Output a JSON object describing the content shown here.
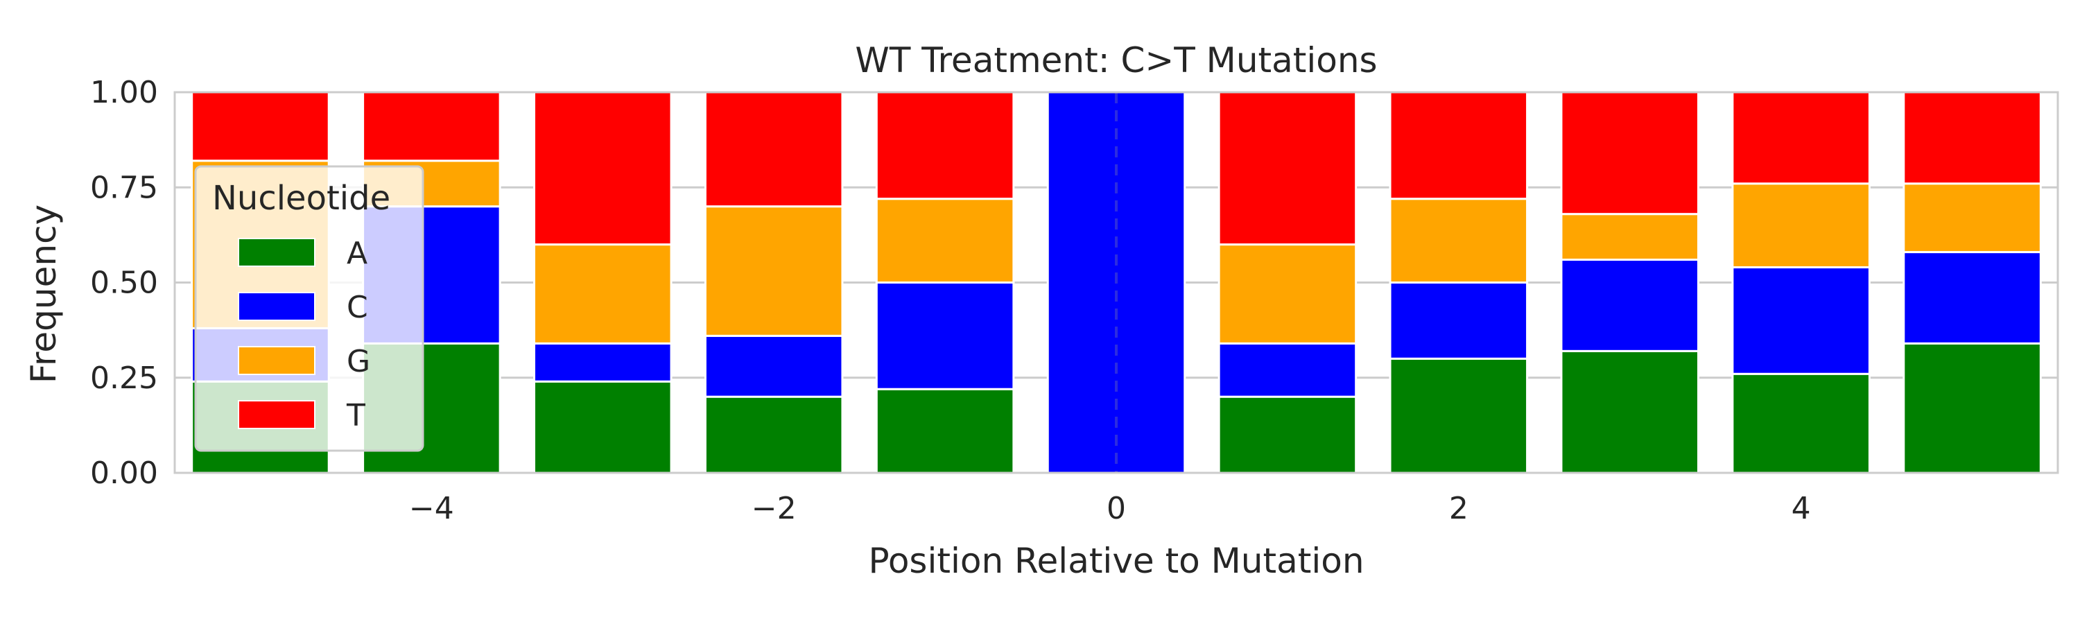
{
  "chart_data": {
    "type": "bar",
    "stacked": true,
    "title": "WT Treatment: C>T Mutations",
    "xlabel": "Position Relative to Mutation",
    "ylabel": "Frequency",
    "x": [
      -5,
      -4,
      -3,
      -2,
      -1,
      0,
      1,
      2,
      3,
      4,
      5
    ],
    "xlim": [
      -5.5,
      5.5
    ],
    "ylim": [
      0,
      1
    ],
    "xticks": [
      -4,
      -2,
      0,
      2,
      4
    ],
    "xtick_labels": [
      "−4",
      "−2",
      "0",
      "2",
      "4"
    ],
    "yticks": [
      0,
      0.25,
      0.5,
      0.75,
      1.0
    ],
    "ytick_labels": [
      "0.00",
      "0.25",
      "0.50",
      "0.75",
      "1.00"
    ],
    "grid": true,
    "reference_line_x": 0,
    "legend": {
      "title": "Nucleotide",
      "position": "upper-left"
    },
    "series": [
      {
        "name": "A",
        "color": "#008000",
        "values": [
          0.24,
          0.34,
          0.24,
          0.2,
          0.22,
          0.0,
          0.2,
          0.3,
          0.32,
          0.26,
          0.34
        ]
      },
      {
        "name": "C",
        "color": "#0000ff",
        "values": [
          0.14,
          0.36,
          0.1,
          0.16,
          0.28,
          1.0,
          0.14,
          0.2,
          0.24,
          0.28,
          0.24
        ]
      },
      {
        "name": "G",
        "color": "#ffa500",
        "values": [
          0.44,
          0.12,
          0.26,
          0.34,
          0.22,
          0.0,
          0.26,
          0.22,
          0.12,
          0.22,
          0.18
        ]
      },
      {
        "name": "T",
        "color": "#ff0000",
        "values": [
          0.18,
          0.18,
          0.4,
          0.3,
          0.28,
          0.0,
          0.4,
          0.28,
          0.32,
          0.24,
          0.24
        ]
      }
    ]
  }
}
